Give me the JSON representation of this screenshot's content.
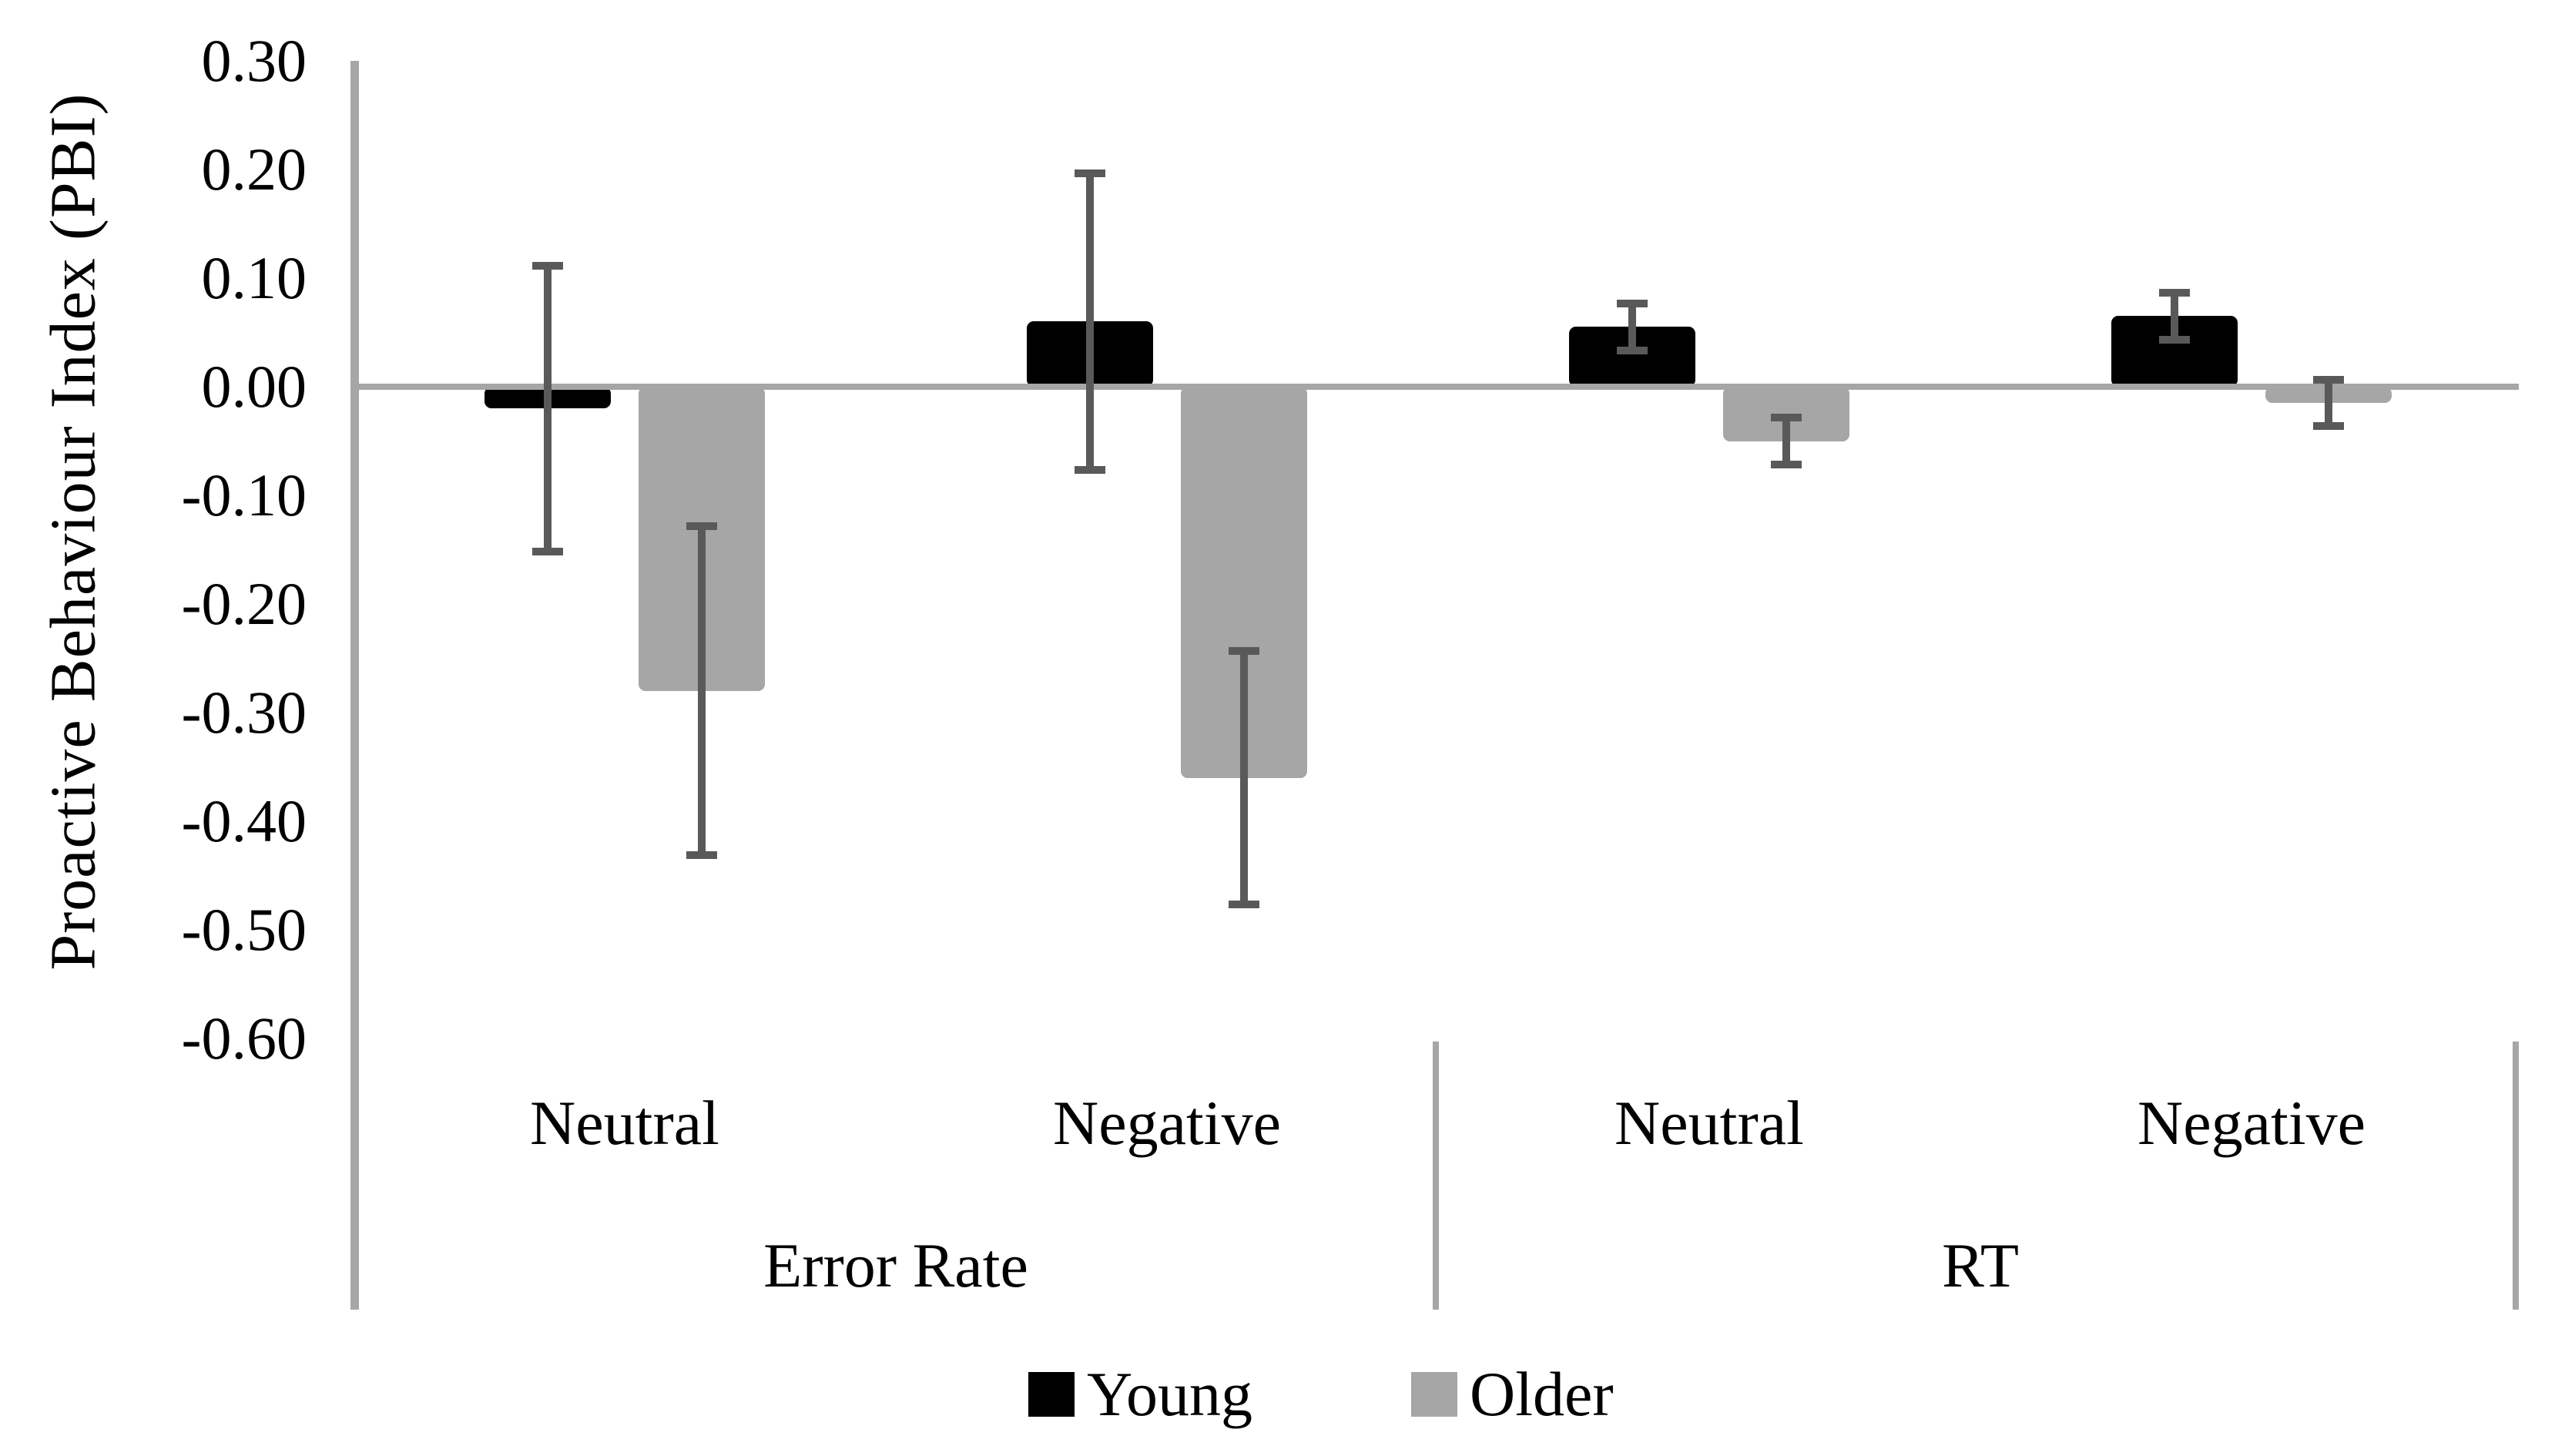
{
  "y_axis": {
    "title": "Proactive Behaviour Index (PBI)",
    "ticks": [
      {
        "label": "0.30",
        "value": 0.3
      },
      {
        "label": "0.20",
        "value": 0.2
      },
      {
        "label": "0.10",
        "value": 0.1
      },
      {
        "label": "0.00",
        "value": 0.0
      },
      {
        "label": "-0.10",
        "value": -0.1
      },
      {
        "label": "-0.20",
        "value": -0.2
      },
      {
        "label": "-0.30",
        "value": -0.3
      },
      {
        "label": "-0.40",
        "value": -0.4
      },
      {
        "label": "-0.50",
        "value": -0.5
      },
      {
        "label": "-0.60",
        "value": -0.6
      }
    ]
  },
  "legend": [
    {
      "label": "Young",
      "color": "#000000"
    },
    {
      "label": "Older",
      "color": "#a6a6a6"
    }
  ],
  "colors": {
    "young_bar": "#000000",
    "older_bar": "#a6a6a6",
    "error_bar": "#595959",
    "axis_line": "#a6a6a6"
  },
  "chart_data": {
    "type": "bar",
    "title": "",
    "ylabel": "Proactive Behaviour Index (PBI)",
    "xlabel": "",
    "ylim": [
      -0.6,
      0.3
    ],
    "ytick_step": 0.1,
    "grid": false,
    "legend_position": "bottom",
    "group_labels": [
      "Error Rate",
      "RT"
    ],
    "categories": [
      "Neutral",
      "Negative",
      "Neutral",
      "Negative"
    ],
    "category_groups": [
      "Error Rate",
      "Error Rate",
      "RT",
      "RT"
    ],
    "series": [
      {
        "name": "Young",
        "color": "#000000",
        "values": [
          -0.02,
          0.06,
          0.055,
          0.065
        ],
        "error_bars": [
          0.135,
          0.14,
          0.025,
          0.025
        ]
      },
      {
        "name": "Older",
        "color": "#a6a6a6",
        "values": [
          -0.28,
          -0.36,
          -0.05,
          -0.015
        ],
        "error_bars": [
          0.155,
          0.12,
          0.025,
          0.025
        ]
      }
    ]
  }
}
